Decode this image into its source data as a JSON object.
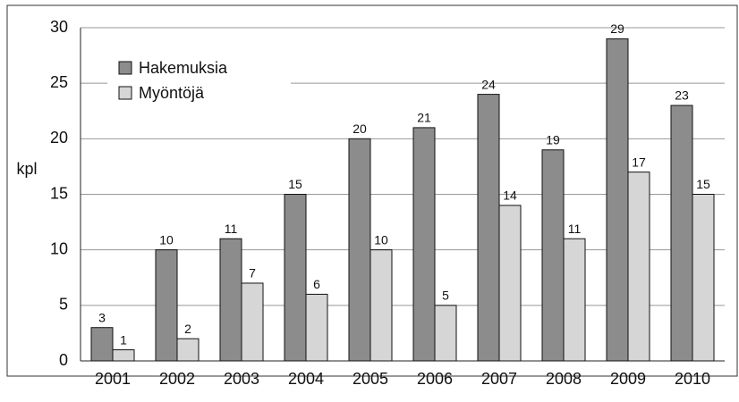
{
  "chart_data": {
    "type": "bar",
    "y_label": "kpl",
    "categories": [
      "2001",
      "2002",
      "2003",
      "2004",
      "2005",
      "2006",
      "2007",
      "2008",
      "2009",
      "2010"
    ],
    "series": [
      {
        "name": "Hakemuksia",
        "color": "#8c8c8c",
        "values": [
          3,
          10,
          11,
          15,
          20,
          21,
          24,
          19,
          29,
          23
        ]
      },
      {
        "name": "Myöntöjä",
        "color": "#d6d6d6",
        "values": [
          1,
          2,
          7,
          6,
          10,
          5,
          14,
          11,
          17,
          15
        ]
      }
    ],
    "ylim": [
      0,
      30
    ],
    "yticks": [
      0,
      5,
      10,
      15,
      20,
      25,
      30
    ],
    "grid": true,
    "legend": "upper left"
  }
}
